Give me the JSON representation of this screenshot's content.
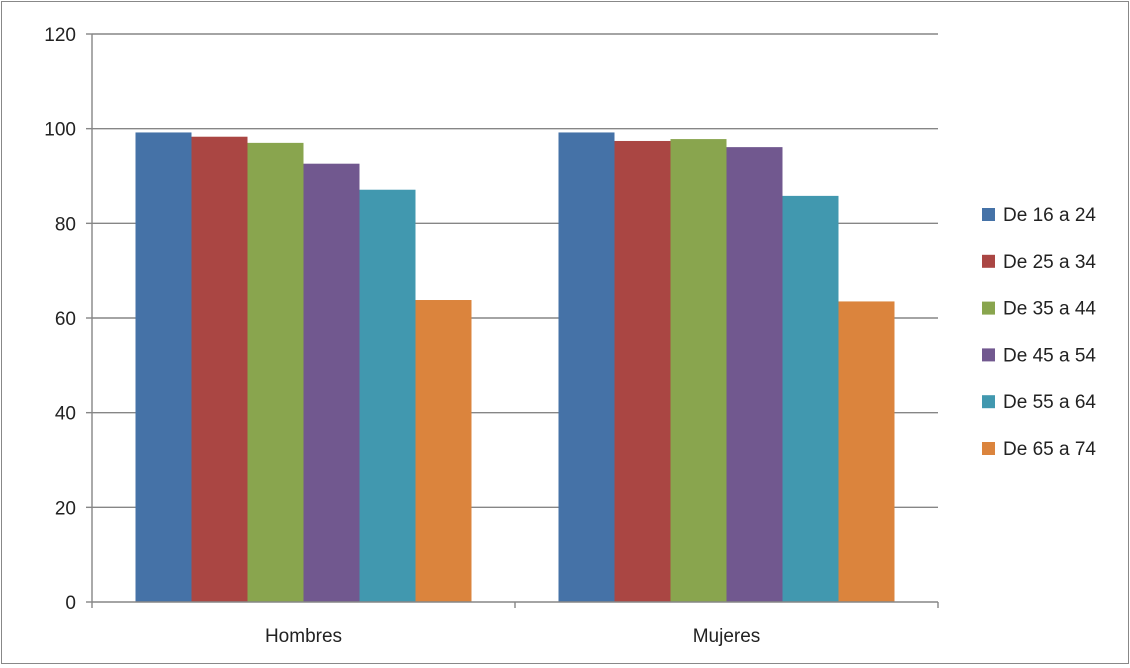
{
  "chart_data": {
    "type": "bar",
    "title": "",
    "xlabel": "",
    "ylabel": "",
    "categories": [
      "Hombres",
      "Mujeres"
    ],
    "series": [
      {
        "name": "De 16 a 24",
        "values": [
          99.2,
          99.2
        ],
        "color": "#4572A7"
      },
      {
        "name": "De 25 a 34",
        "values": [
          98.3,
          97.4
        ],
        "color": "#AA4643"
      },
      {
        "name": "De 35 a 44",
        "values": [
          97.0,
          97.8
        ],
        "color": "#89A54E"
      },
      {
        "name": "De 45 a 54",
        "values": [
          92.6,
          96.1
        ],
        "color": "#71588F"
      },
      {
        "name": "De 55 a 64",
        "values": [
          87.1,
          85.8
        ],
        "color": "#4198AF"
      },
      {
        "name": "De 65 a 74",
        "values": [
          63.8,
          63.5
        ],
        "color": "#DB843D"
      }
    ],
    "ylim": [
      0,
      120
    ],
    "yticks": [
      0,
      20,
      40,
      60,
      80,
      100,
      120
    ],
    "grid": true,
    "legend_position": "right"
  }
}
